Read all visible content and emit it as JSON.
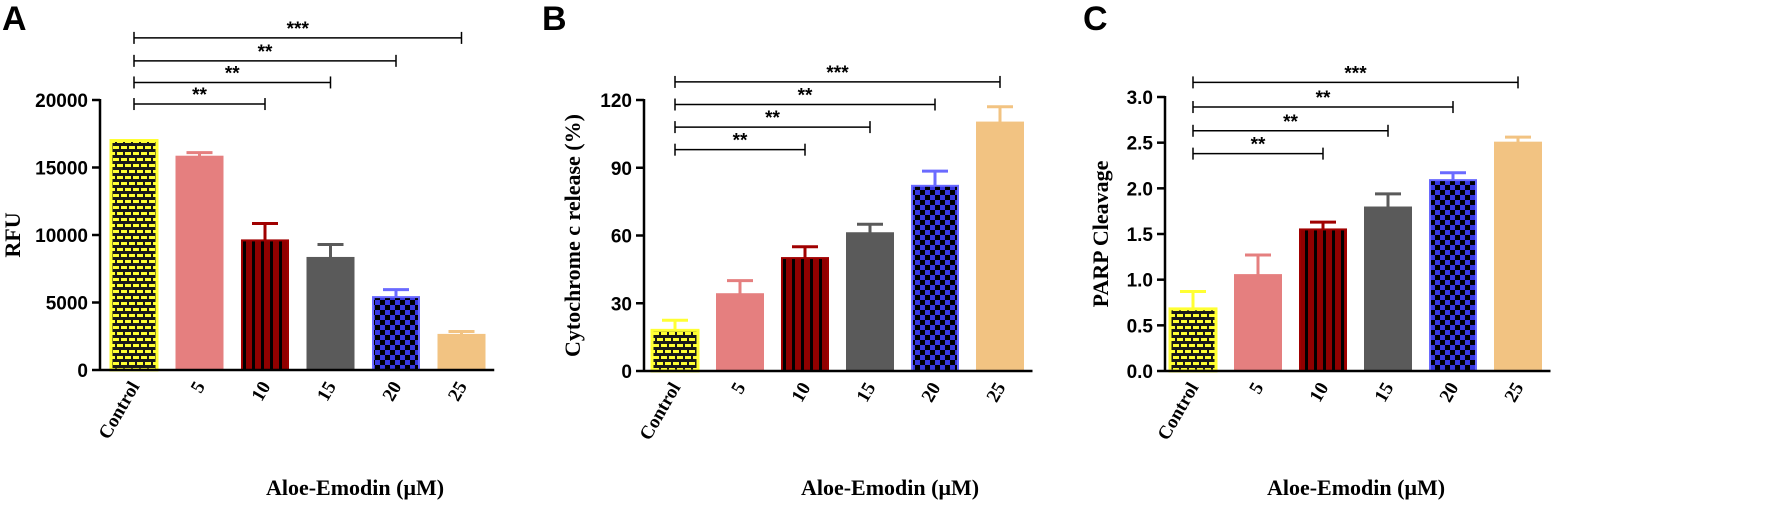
{
  "chart_data": [
    {
      "type": "bar",
      "panel": "A",
      "categories": [
        "Control",
        "5",
        "10",
        "15",
        "20",
        "25"
      ],
      "values": [
        17000,
        15800,
        9600,
        8300,
        5400,
        2600
      ],
      "errors": [
        0,
        300,
        1250,
        1000,
        550,
        250
      ],
      "fill_colors": [
        "#1a1a1a",
        "#e57f7f",
        "#800000",
        "#5a5a5a",
        "#3838e0",
        "#f2c382"
      ],
      "edge_colors": [
        "#ffff33",
        "#e57f7f",
        "#a00000",
        "#5a5a5a",
        "#6a6aff",
        "#f2c382"
      ],
      "patterns": [
        "brick",
        "none",
        "vstripe",
        "none",
        "checker",
        "none"
      ],
      "ylabel": "RFU",
      "xlabel": "Aloe-Emodin (μM)",
      "ylim": [
        0,
        20000
      ],
      "yticks": [
        0,
        5000,
        10000,
        15000,
        20000
      ],
      "significance": [
        {
          "from": 0,
          "to": 2,
          "label": "**",
          "y": 19700
        },
        {
          "from": 0,
          "to": 3,
          "label": "**",
          "y": 21300
        },
        {
          "from": 0,
          "to": 4,
          "label": "**",
          "y": 22900
        },
        {
          "from": 0,
          "to": 5,
          "label": "***",
          "y": 24600
        }
      ]
    },
    {
      "type": "bar",
      "panel": "B",
      "categories": [
        "Control",
        "5",
        "10",
        "15",
        "20",
        "25"
      ],
      "values": [
        18,
        34,
        50,
        61,
        82,
        110
      ],
      "errors": [
        4.5,
        6,
        5,
        4,
        6.5,
        7
      ],
      "fill_colors": [
        "#1a1a1a",
        "#e57f7f",
        "#800000",
        "#5a5a5a",
        "#3838e0",
        "#f2c382"
      ],
      "edge_colors": [
        "#ffff33",
        "#e57f7f",
        "#a00000",
        "#5a5a5a",
        "#6a6aff",
        "#f2c382"
      ],
      "patterns": [
        "brick",
        "none",
        "vstripe",
        "none",
        "checker",
        "none"
      ],
      "ylabel": "Cytochrome c release (%)",
      "xlabel": "Aloe-Emodin (μM)",
      "ylim": [
        0,
        120
      ],
      "yticks": [
        0,
        30,
        60,
        90,
        120
      ],
      "significance": [
        {
          "from": 0,
          "to": 2,
          "label": "**",
          "y": 98
        },
        {
          "from": 0,
          "to": 3,
          "label": "**",
          "y": 108
        },
        {
          "from": 0,
          "to": 4,
          "label": "**",
          "y": 118
        },
        {
          "from": 0,
          "to": 5,
          "label": "***",
          "y": 128
        }
      ]
    },
    {
      "type": "bar",
      "panel": "C",
      "categories": [
        "Control",
        "5",
        "10",
        "15",
        "20",
        "25"
      ],
      "values": [
        0.68,
        1.05,
        1.55,
        1.79,
        2.09,
        2.5
      ],
      "errors": [
        0.19,
        0.22,
        0.08,
        0.15,
        0.08,
        0.06
      ],
      "fill_colors": [
        "#1a1a1a",
        "#e57f7f",
        "#800000",
        "#5a5a5a",
        "#3838e0",
        "#f2c382"
      ],
      "edge_colors": [
        "#ffff33",
        "#e57f7f",
        "#a00000",
        "#5a5a5a",
        "#6a6aff",
        "#f2c382"
      ],
      "patterns": [
        "brick",
        "none",
        "vstripe",
        "none",
        "checker",
        "none"
      ],
      "ylabel": "PARP Cleavage",
      "xlabel": "Aloe-Emodin (μM)",
      "ylim": [
        0,
        3.0
      ],
      "yticks": [
        "0.0",
        "0.5",
        "1.0",
        "1.5",
        "2.0",
        "2.5",
        "3.0"
      ],
      "significance": [
        {
          "from": 0,
          "to": 2,
          "label": "**",
          "y": 2.38
        },
        {
          "from": 0,
          "to": 3,
          "label": "**",
          "y": 2.63
        },
        {
          "from": 0,
          "to": 4,
          "label": "**",
          "y": 2.89
        },
        {
          "from": 0,
          "to": 5,
          "label": "***",
          "y": 3.16
        }
      ]
    }
  ]
}
